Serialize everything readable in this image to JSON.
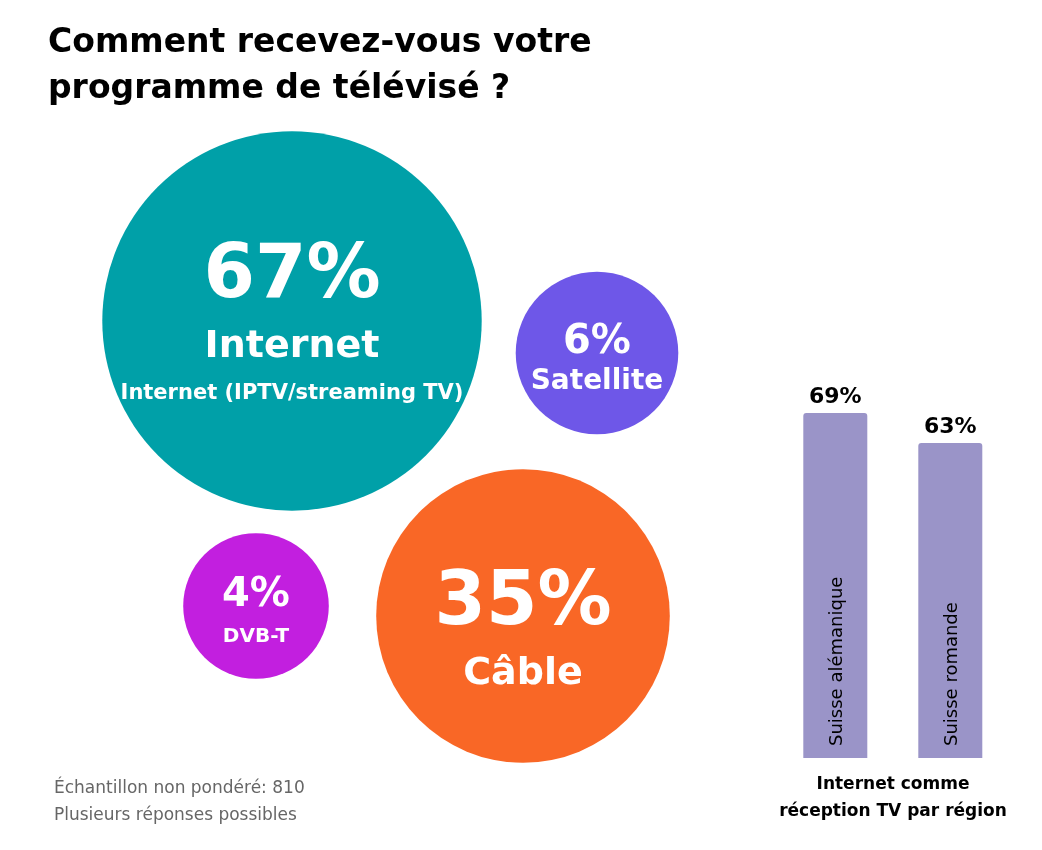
{
  "chart_data": [
    {
      "type": "other",
      "title": "Comment recevez-vous votre programme de télévisé ?",
      "categories": [
        "Internet",
        "Satellite",
        "Câble",
        "DVB-T"
      ],
      "values": [
        67,
        6,
        35,
        4
      ],
      "value_labels": [
        "67%",
        "6%",
        "35%",
        "4%"
      ],
      "colors": [
        "#00a0a8",
        "#6e57e8",
        "#f96726",
        "#c21fdf"
      ],
      "annotations": [
        "Internet (IPTV/streaming TV)",
        "Échantillon non pondéré: 810",
        "Plusieurs réponses possibles"
      ]
    },
    {
      "type": "bar",
      "categories": [
        "Suisse alémanique",
        "Suisse romande"
      ],
      "values": [
        69,
        63
      ],
      "value_labels": [
        "69%",
        "63%"
      ],
      "color": "#9a94c8",
      "xlabel": "Internet comme réception TV par région"
    }
  ]
}
